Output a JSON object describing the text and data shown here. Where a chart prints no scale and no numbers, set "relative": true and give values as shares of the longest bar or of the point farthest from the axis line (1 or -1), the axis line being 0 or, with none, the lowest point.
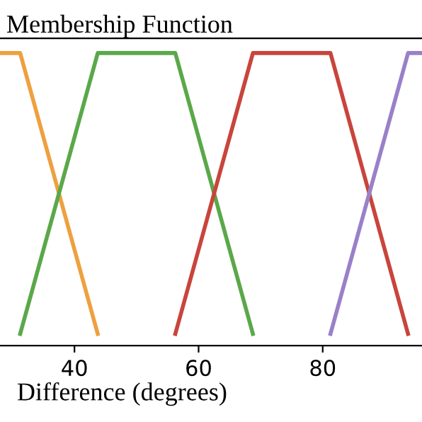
{
  "chart_data": {
    "type": "line",
    "title": "Membership Function",
    "xlabel": "Difference (degrees)",
    "relative": true,
    "xlim": [
      28,
      96
    ],
    "xticks": [
      40,
      60,
      80
    ],
    "grid": false,
    "legend": false,
    "series": [
      {
        "color": "#eea040",
        "x": [
          28,
          31.25,
          43.75
        ],
        "values": [
          1,
          1,
          0.04
        ]
      },
      {
        "color": "#5aa84a",
        "x": [
          31.25,
          43.75,
          56.25,
          68.75
        ],
        "values": [
          0.04,
          1,
          1,
          0.04
        ]
      },
      {
        "color": "#c8453c",
        "x": [
          56.25,
          68.75,
          81.25,
          93.75
        ],
        "values": [
          0.04,
          1,
          1,
          0.04
        ]
      },
      {
        "color": "#9a80c8",
        "x": [
          81.25,
          93.75,
          96
        ],
        "values": [
          0.04,
          1,
          1
        ]
      }
    ]
  }
}
